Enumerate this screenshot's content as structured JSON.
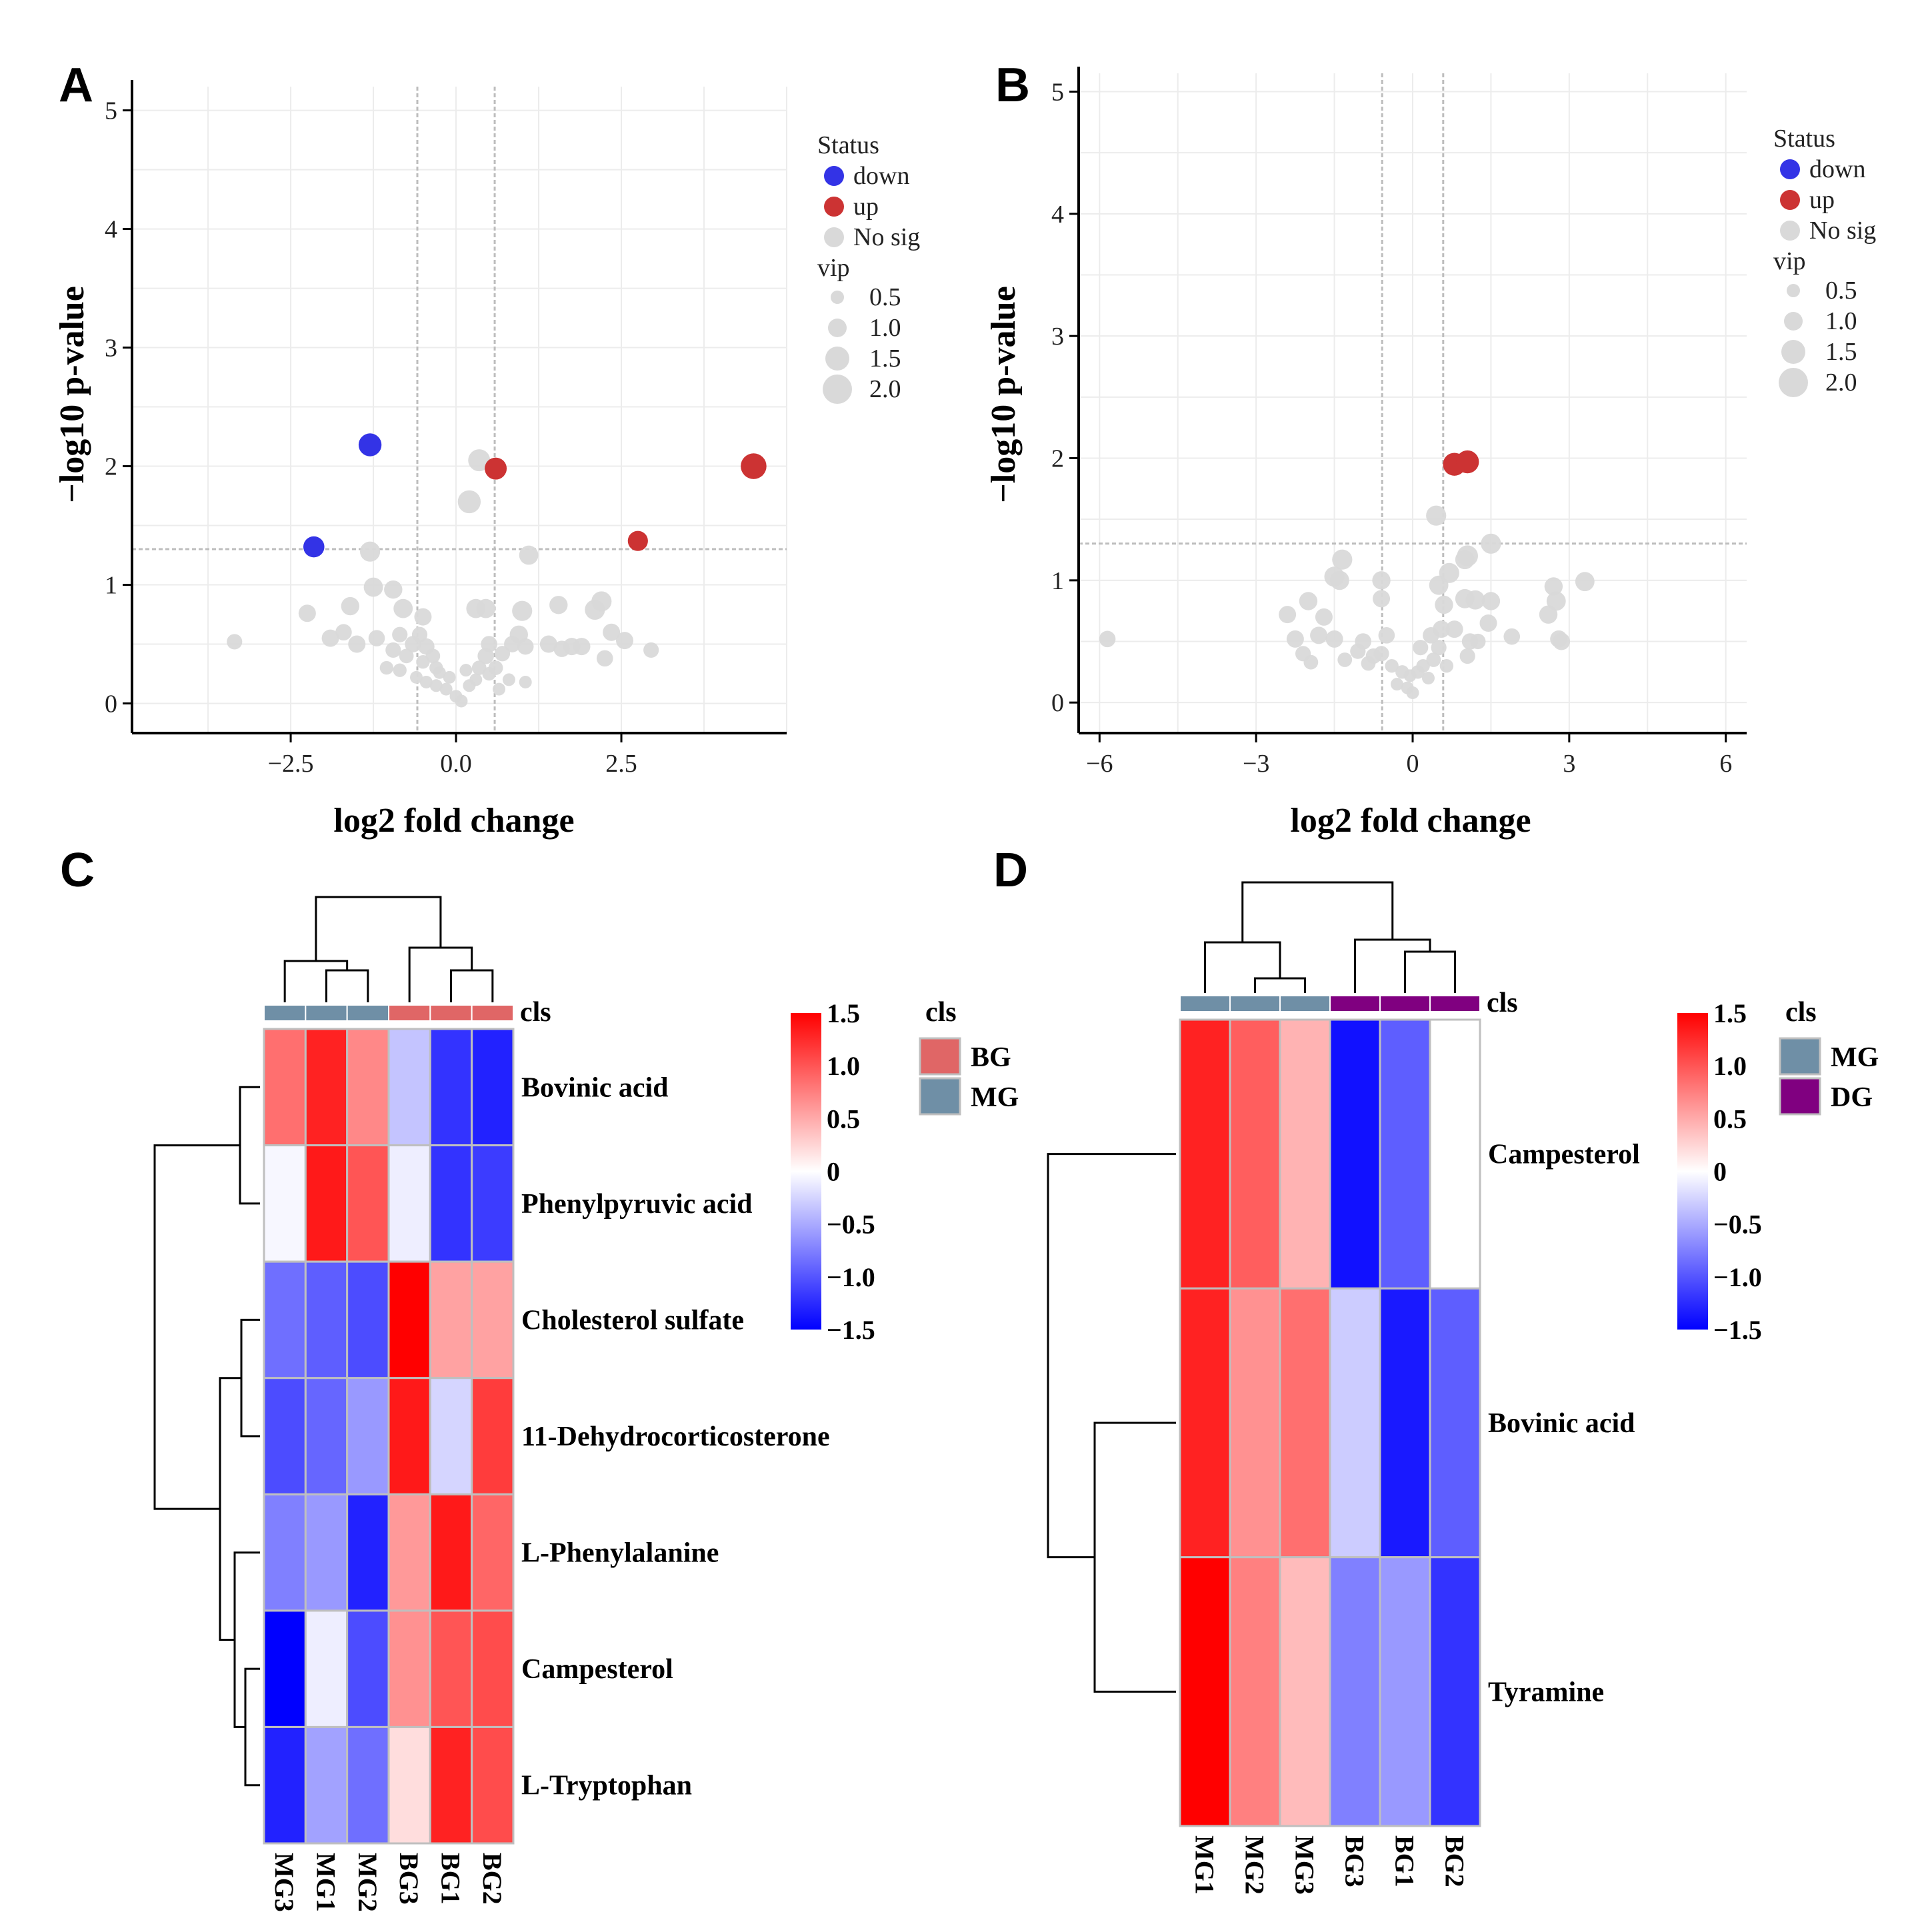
{
  "panels": {
    "A": {
      "label": "A",
      "xlabel": "log2 fold change",
      "ylabel": "−log10 p-value",
      "xticks": [
        {
          "v": -2.5,
          "t": "−2.5"
        },
        {
          "v": 0,
          "t": "0.0"
        },
        {
          "v": 2.5,
          "t": "2.5"
        }
      ],
      "yticks": [
        {
          "v": 0,
          "t": "0"
        },
        {
          "v": 1,
          "t": "1"
        },
        {
          "v": 2,
          "t": "2"
        },
        {
          "v": 3,
          "t": "3"
        },
        {
          "v": 4,
          "t": "4"
        },
        {
          "v": 5,
          "t": "5"
        }
      ]
    },
    "B": {
      "label": "B",
      "xlabel": "log2 fold change",
      "ylabel": "−log10 p-value",
      "xticks": [
        {
          "v": -6,
          "t": "−6"
        },
        {
          "v": -3,
          "t": "−3"
        },
        {
          "v": 0,
          "t": "0"
        },
        {
          "v": 3,
          "t": "3"
        },
        {
          "v": 6,
          "t": "6"
        }
      ],
      "yticks": [
        {
          "v": 0,
          "t": "0"
        },
        {
          "v": 1,
          "t": "1"
        },
        {
          "v": 2,
          "t": "2"
        },
        {
          "v": 3,
          "t": "3"
        },
        {
          "v": 4,
          "t": "4"
        },
        {
          "v": 5,
          "t": "5"
        }
      ]
    },
    "C": {
      "label": "C"
    },
    "D": {
      "label": "D"
    }
  },
  "legend": {
    "status_title": "Status",
    "status_items": [
      {
        "label": "down",
        "color": "#3333e6"
      },
      {
        "label": "up",
        "color": "#cc3333"
      },
      {
        "label": "No sig",
        "color": "#d9d9d9"
      }
    ],
    "vip_title": "vip",
    "vip_items": [
      "0.5",
      "1.0",
      "1.5",
      "2.0"
    ]
  },
  "heatmap_legend": {
    "cls_title": "cls",
    "colorbar_ticks": [
      {
        "v": 1.5,
        "t": "1.5"
      },
      {
        "v": 1.0,
        "t": "1.0"
      },
      {
        "v": 0.5,
        "t": "0.5"
      },
      {
        "v": 0,
        "t": "0"
      },
      {
        "v": -0.5,
        "t": "−0.5"
      },
      {
        "v": -1.0,
        "t": "−1.0"
      },
      {
        "v": -1.5,
        "t": "−1.5"
      }
    ],
    "C_groups": [
      {
        "label": "BG",
        "color": "#e06666"
      },
      {
        "label": "MG",
        "color": "#6f8fa6"
      }
    ],
    "D_groups": [
      {
        "label": "MG",
        "color": "#6f8fa6"
      },
      {
        "label": "DG",
        "color": "#800080"
      }
    ]
  },
  "chart_data": [
    {
      "id": "A",
      "type": "scatter",
      "xlabel": "log2 fold change",
      "ylabel": "−log10 p-value",
      "xlim": [
        -4.9,
        5.0
      ],
      "ylim": [
        -0.25,
        5.2
      ],
      "vlines": [
        -0.585,
        0.585
      ],
      "hline": 1.301,
      "points": [
        [
          -1.3,
          2.18,
          "down",
          1.6
        ],
        [
          -2.15,
          1.32,
          "down",
          1.4
        ],
        [
          4.5,
          2.0,
          "up",
          1.9
        ],
        [
          0.6,
          1.98,
          "up",
          1.5
        ],
        [
          2.75,
          1.37,
          "up",
          1.3
        ],
        [
          0.35,
          2.05,
          "nosig",
          1.5
        ],
        [
          0.2,
          1.7,
          "nosig",
          1.6
        ],
        [
          -1.3,
          1.28,
          "nosig",
          1.3
        ],
        [
          1.1,
          1.25,
          "nosig",
          1.2
        ],
        [
          -3.35,
          0.52,
          "nosig",
          0.8
        ],
        [
          -2.25,
          0.76,
          "nosig",
          1.0
        ],
        [
          -1.6,
          0.82,
          "nosig",
          1.1
        ],
        [
          -1.7,
          0.6,
          "nosig",
          0.9
        ],
        [
          -1.25,
          0.98,
          "nosig",
          1.2
        ],
        [
          -0.95,
          0.96,
          "nosig",
          1.1
        ],
        [
          -0.8,
          0.8,
          "nosig",
          1.2
        ],
        [
          -0.5,
          0.73,
          "nosig",
          1.0
        ],
        [
          -1.9,
          0.55,
          "nosig",
          1.0
        ],
        [
          -1.5,
          0.5,
          "nosig",
          1.0
        ],
        [
          -1.2,
          0.55,
          "nosig",
          0.9
        ],
        [
          -0.95,
          0.45,
          "nosig",
          0.8
        ],
        [
          -0.65,
          0.5,
          "nosig",
          0.9
        ],
        [
          -0.45,
          0.48,
          "nosig",
          0.9
        ],
        [
          -0.75,
          0.4,
          "nosig",
          0.7
        ],
        [
          -0.5,
          0.35,
          "nosig",
          0.6
        ],
        [
          -0.3,
          0.3,
          "nosig",
          0.6
        ],
        [
          -0.6,
          0.22,
          "nosig",
          0.5
        ],
        [
          -0.45,
          0.18,
          "nosig",
          0.5
        ],
        [
          -0.3,
          0.15,
          "nosig",
          0.5
        ],
        [
          -0.15,
          0.12,
          "nosig",
          0.5
        ],
        [
          0.0,
          0.06,
          "nosig",
          0.5
        ],
        [
          0.08,
          0.02,
          "nosig",
          0.5
        ],
        [
          -0.1,
          0.22,
          "nosig",
          0.5
        ],
        [
          -0.25,
          0.26,
          "nosig",
          0.5
        ],
        [
          -1.05,
          0.3,
          "nosig",
          0.6
        ],
        [
          -0.85,
          0.28,
          "nosig",
          0.6
        ],
        [
          0.2,
          0.15,
          "nosig",
          0.5
        ],
        [
          0.3,
          0.2,
          "nosig",
          0.5
        ],
        [
          0.5,
          0.25,
          "nosig",
          0.6
        ],
        [
          0.6,
          0.3,
          "nosig",
          0.7
        ],
        [
          0.45,
          0.4,
          "nosig",
          0.9
        ],
        [
          0.35,
          0.3,
          "nosig",
          0.7
        ],
        [
          0.7,
          0.42,
          "nosig",
          0.8
        ],
        [
          0.85,
          0.5,
          "nosig",
          0.9
        ],
        [
          0.5,
          0.5,
          "nosig",
          0.9
        ],
        [
          0.3,
          0.8,
          "nosig",
          1.2
        ],
        [
          0.45,
          0.8,
          "nosig",
          1.2
        ],
        [
          1.0,
          0.78,
          "nosig",
          1.3
        ],
        [
          0.95,
          0.58,
          "nosig",
          1.1
        ],
        [
          1.05,
          0.48,
          "nosig",
          0.9
        ],
        [
          1.4,
          0.5,
          "nosig",
          1.0
        ],
        [
          1.6,
          0.46,
          "nosig",
          0.9
        ],
        [
          1.55,
          0.83,
          "nosig",
          1.1
        ],
        [
          1.75,
          0.48,
          "nosig",
          1.0
        ],
        [
          1.9,
          0.48,
          "nosig",
          1.0
        ],
        [
          2.1,
          0.79,
          "nosig",
          1.3
        ],
        [
          2.2,
          0.86,
          "nosig",
          1.3
        ],
        [
          2.35,
          0.6,
          "nosig",
          1.0
        ],
        [
          2.25,
          0.38,
          "nosig",
          0.9
        ],
        [
          2.55,
          0.53,
          "nosig",
          1.0
        ],
        [
          2.95,
          0.45,
          "nosig",
          0.8
        ],
        [
          -0.85,
          0.58,
          "nosig",
          0.8
        ],
        [
          0.8,
          0.2,
          "nosig",
          0.5
        ],
        [
          1.05,
          0.18,
          "nosig",
          0.5
        ],
        [
          -0.35,
          0.4,
          "nosig",
          0.7
        ],
        [
          0.15,
          0.28,
          "nosig",
          0.5
        ],
        [
          -0.55,
          0.58,
          "nosig",
          0.8
        ],
        [
          0.65,
          0.12,
          "nosig",
          0.5
        ]
      ]
    },
    {
      "id": "B",
      "type": "scatter",
      "xlabel": "log2 fold change",
      "ylabel": "−log10 p-value",
      "xlim": [
        -6.4,
        6.4
      ],
      "ylim": [
        -0.25,
        5.15
      ],
      "vlines": [
        -0.585,
        0.585
      ],
      "hline": 1.301,
      "points": [
        [
          0.8,
          1.95,
          "up",
          1.6
        ],
        [
          1.05,
          1.97,
          "up",
          1.6
        ],
        [
          -5.85,
          0.52,
          "nosig",
          0.9
        ],
        [
          0.45,
          1.53,
          "nosig",
          1.3
        ],
        [
          1.5,
          1.3,
          "nosig",
          1.3
        ],
        [
          1.05,
          1.2,
          "nosig",
          1.4
        ],
        [
          1.0,
          1.17,
          "nosig",
          1.2
        ],
        [
          0.7,
          1.06,
          "nosig",
          1.3
        ],
        [
          0.5,
          0.96,
          "nosig",
          1.2
        ],
        [
          -1.35,
          1.17,
          "nosig",
          1.3
        ],
        [
          -1.5,
          1.03,
          "nosig",
          1.3
        ],
        [
          -1.4,
          1.0,
          "nosig",
          1.2
        ],
        [
          -0.6,
          1.0,
          "nosig",
          1.1
        ],
        [
          -0.6,
          0.85,
          "nosig",
          1.0
        ],
        [
          -2.0,
          0.83,
          "nosig",
          1.1
        ],
        [
          -2.4,
          0.72,
          "nosig",
          1.0
        ],
        [
          -1.7,
          0.7,
          "nosig",
          1.0
        ],
        [
          -2.25,
          0.52,
          "nosig",
          1.0
        ],
        [
          -1.8,
          0.55,
          "nosig",
          1.0
        ],
        [
          -1.5,
          0.52,
          "nosig",
          1.0
        ],
        [
          -2.1,
          0.4,
          "nosig",
          0.8
        ],
        [
          -1.95,
          0.33,
          "nosig",
          0.7
        ],
        [
          -1.3,
          0.35,
          "nosig",
          0.7
        ],
        [
          -1.05,
          0.42,
          "nosig",
          0.8
        ],
        [
          -0.95,
          0.5,
          "nosig",
          0.9
        ],
        [
          -0.75,
          0.38,
          "nosig",
          0.8
        ],
        [
          -0.6,
          0.4,
          "nosig",
          0.8
        ],
        [
          -0.85,
          0.32,
          "nosig",
          0.7
        ],
        [
          -0.4,
          0.3,
          "nosig",
          0.6
        ],
        [
          -0.2,
          0.25,
          "nosig",
          0.6
        ],
        [
          -0.3,
          0.15,
          "nosig",
          0.5
        ],
        [
          -0.1,
          0.12,
          "nosig",
          0.5
        ],
        [
          0.0,
          0.08,
          "nosig",
          0.5
        ],
        [
          -0.05,
          0.22,
          "nosig",
          0.5
        ],
        [
          0.1,
          0.25,
          "nosig",
          0.6
        ],
        [
          0.2,
          0.3,
          "nosig",
          0.6
        ],
        [
          0.3,
          0.2,
          "nosig",
          0.5
        ],
        [
          0.4,
          0.35,
          "nosig",
          0.7
        ],
        [
          0.5,
          0.45,
          "nosig",
          0.8
        ],
        [
          0.35,
          0.55,
          "nosig",
          0.9
        ],
        [
          0.55,
          0.6,
          "nosig",
          1.0
        ],
        [
          0.6,
          0.8,
          "nosig",
          1.1
        ],
        [
          0.8,
          0.6,
          "nosig",
          1.0
        ],
        [
          1.0,
          0.85,
          "nosig",
          1.2
        ],
        [
          1.2,
          0.84,
          "nosig",
          1.2
        ],
        [
          1.5,
          0.83,
          "nosig",
          1.1
        ],
        [
          1.45,
          0.65,
          "nosig",
          1.0
        ],
        [
          1.1,
          0.5,
          "nosig",
          0.9
        ],
        [
          1.05,
          0.38,
          "nosig",
          0.8
        ],
        [
          1.25,
          0.5,
          "nosig",
          0.8
        ],
        [
          1.9,
          0.54,
          "nosig",
          0.9
        ],
        [
          2.7,
          0.95,
          "nosig",
          1.1
        ],
        [
          2.75,
          0.83,
          "nosig",
          1.2
        ],
        [
          2.6,
          0.72,
          "nosig",
          1.1
        ],
        [
          3.3,
          0.99,
          "nosig",
          1.2
        ],
        [
          2.8,
          0.52,
          "nosig",
          1.0
        ],
        [
          2.85,
          0.5,
          "nosig",
          1.0
        ],
        [
          0.65,
          0.3,
          "nosig",
          0.6
        ],
        [
          -0.5,
          0.55,
          "nosig",
          0.9
        ],
        [
          0.15,
          0.45,
          "nosig",
          0.8
        ]
      ]
    },
    {
      "id": "C",
      "type": "heatmap",
      "columns": [
        "MG3",
        "MG1",
        "MG2",
        "BG3",
        "BG1",
        "BG2"
      ],
      "column_groups": [
        "MG",
        "MG",
        "MG",
        "BG",
        "BG",
        "BG"
      ],
      "rows": [
        "Bovinic acid",
        "Phenylpyruvic acid",
        "Cholesterol sulfate",
        "11-Dehydrocorticosterone",
        "L-Phenylalanine",
        "Campesterol",
        "L-Tryptophan"
      ],
      "values": [
        [
          0.85,
          1.3,
          0.7,
          -0.35,
          -1.2,
          -1.3
        ],
        [
          -0.05,
          1.35,
          1.0,
          -0.1,
          -1.2,
          -1.15
        ],
        [
          -0.85,
          -0.95,
          -1.05,
          1.5,
          0.55,
          0.55
        ],
        [
          -1.05,
          -0.9,
          -0.6,
          1.35,
          -0.25,
          1.15
        ],
        [
          -0.75,
          -0.6,
          -1.3,
          0.6,
          1.35,
          0.9
        ],
        [
          -1.5,
          -0.1,
          -1.05,
          0.65,
          1.0,
          1.05
        ],
        [
          -1.3,
          -0.55,
          -0.85,
          0.2,
          1.3,
          1.05
        ]
      ],
      "colorbar": {
        "min": -1.5,
        "max": 1.5
      },
      "legend": [
        "BG",
        "MG"
      ]
    },
    {
      "id": "D",
      "type": "heatmap",
      "columns": [
        "MG1",
        "MG2",
        "MG3",
        "BG3",
        "BG1",
        "BG2"
      ],
      "column_groups": [
        "MG",
        "MG",
        "MG",
        "DG",
        "DG",
        "DG"
      ],
      "rows": [
        "Campesterol",
        "Bovinic acid",
        "Tyramine"
      ],
      "values": [
        [
          1.3,
          0.95,
          0.45,
          -1.4,
          -0.95,
          0.0
        ],
        [
          1.3,
          0.65,
          0.85,
          -0.3,
          -1.35,
          -0.95
        ],
        [
          1.5,
          0.75,
          0.4,
          -0.75,
          -0.6,
          -1.2
        ]
      ],
      "colorbar": {
        "min": -1.5,
        "max": 1.5
      },
      "legend": [
        "MG",
        "DG"
      ]
    }
  ]
}
